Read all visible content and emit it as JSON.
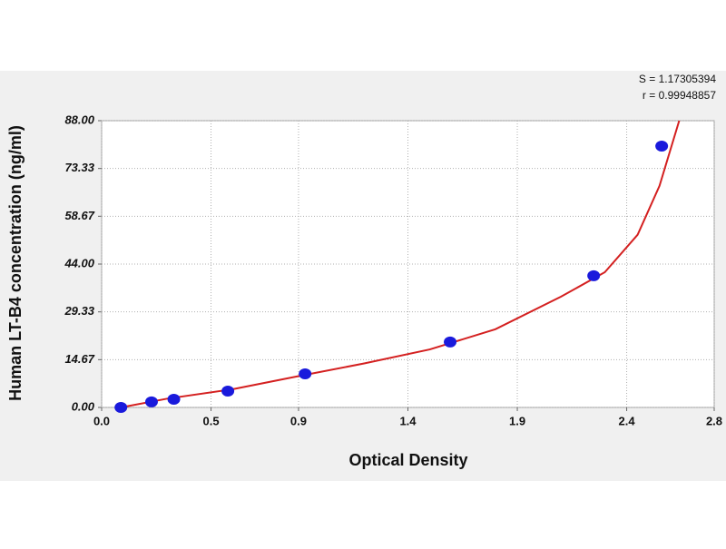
{
  "chart_data": {
    "type": "scatter",
    "x_label": "Optical Density",
    "y_label": "Human LT-B4 concentration (ng/ml)",
    "annotations": [
      "S = 1.17305394",
      "r = 0.99948857"
    ],
    "xlim": [
      0,
      2.8
    ],
    "xticks": [
      {
        "value": 0,
        "label": "0.0"
      },
      0.5,
      0.9,
      1.4,
      1.9,
      2.4,
      2.8
    ],
    "ylim": [
      0,
      88
    ],
    "yticks": [
      {
        "value": 0,
        "label": "0.00"
      },
      14.67,
      29.33,
      {
        "value": 44,
        "label": "44.00"
      },
      58.67,
      73.33,
      {
        "value": 88,
        "label": "88.00"
      }
    ],
    "grid": true,
    "series": [
      {
        "mark": "dot",
        "color": "#1a1adc",
        "x": [
          0.088,
          0.228,
          0.33,
          0.577,
          0.93,
          1.593,
          2.249,
          2.56
        ],
        "values": [
          0,
          1.7,
          2.5,
          5.0,
          10.3,
          20.1,
          40.4,
          80.2
        ]
      },
      {
        "mark": "line",
        "color": "#d42020",
        "x": [
          0.088,
          0.3,
          0.6,
          0.9,
          1.2,
          1.5,
          1.8,
          2.1,
          2.3,
          2.45,
          2.55,
          2.64
        ],
        "values": [
          0,
          2.7,
          5.6,
          9.6,
          13.5,
          17.8,
          24,
          34,
          41.5,
          53,
          68,
          88
        ]
      }
    ]
  }
}
